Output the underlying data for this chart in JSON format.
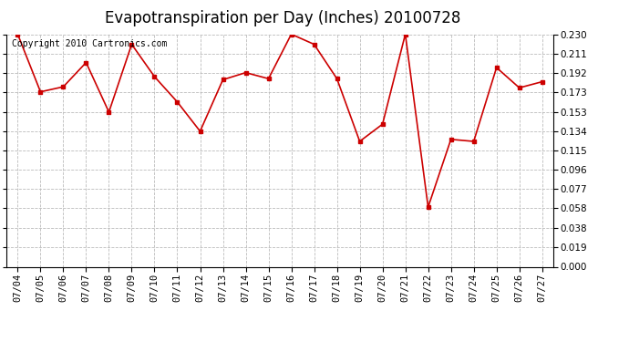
{
  "title": "Evapotranspiration per Day (Inches) 20100728",
  "copyright": "Copyright 2010 Cartronics.com",
  "dates": [
    "07/04",
    "07/05",
    "07/06",
    "07/07",
    "07/08",
    "07/09",
    "07/10",
    "07/11",
    "07/12",
    "07/13",
    "07/14",
    "07/15",
    "07/16",
    "07/17",
    "07/18",
    "07/19",
    "07/20",
    "07/21",
    "07/22",
    "07/23",
    "07/24",
    "07/25",
    "07/26",
    "07/27"
  ],
  "values": [
    0.23,
    0.173,
    0.178,
    0.202,
    0.153,
    0.22,
    0.188,
    0.163,
    0.134,
    0.185,
    0.192,
    0.186,
    0.23,
    0.22,
    0.186,
    0.124,
    0.141,
    0.23,
    0.059,
    0.126,
    0.124,
    0.197,
    0.177,
    0.183
  ],
  "line_color": "#cc0000",
  "marker": "s",
  "marker_size": 3,
  "background_color": "#ffffff",
  "plot_bg_color": "#ffffff",
  "grid_color": "#bbbbbb",
  "ylim": [
    0.0,
    0.23
  ],
  "yticks": [
    0.0,
    0.019,
    0.038,
    0.058,
    0.077,
    0.096,
    0.115,
    0.134,
    0.153,
    0.173,
    0.192,
    0.211,
    0.23
  ],
  "title_fontsize": 12,
  "copyright_fontsize": 7,
  "tick_fontsize": 7.5
}
